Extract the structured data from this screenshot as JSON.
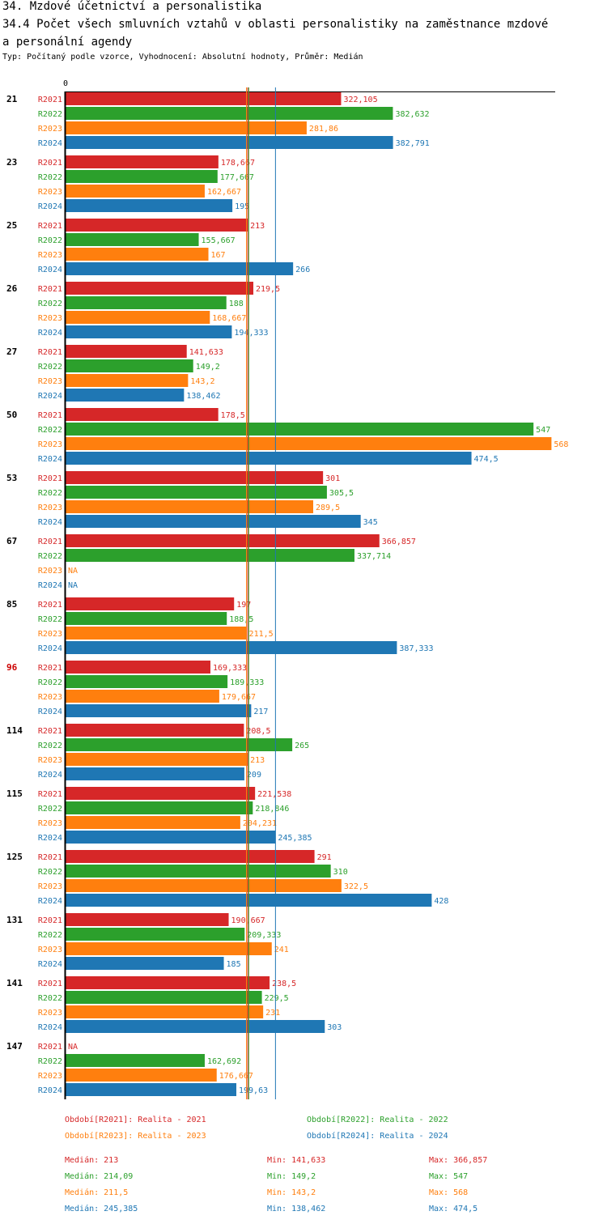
{
  "header": {
    "title_line1": "34. Mzdové účetnictví a personalistika",
    "title_line2": "34.4 Počet všech smluvních vztahů v oblasti personalistiky na zaměstnance mzdové",
    "title_line3": "a personální agendy",
    "subtitle": "Typ: Počítaný podle vzorce, Vyhodnocení: Absolutní hodnoty, Průměr: Medián"
  },
  "colors": {
    "R2021": "#d62728",
    "R2022": "#2ca02c",
    "R2023": "#ff7f0e",
    "R2024": "#1f77b4",
    "highlight": "#cc0000"
  },
  "chart_data": {
    "type": "bar",
    "orientation": "horizontal",
    "title": "34.4 Počet všech smluvních vztahů v oblasti personalistiky na zaměstnance mzdové a personální agendy",
    "axis_zero_label": "0",
    "xlim": [
      0,
      568
    ],
    "series_names": [
      "R2021",
      "R2022",
      "R2023",
      "R2024"
    ],
    "highlight_category": "96",
    "groups": [
      {
        "category": "21",
        "values": [
          322.105,
          382.632,
          281.86,
          382.791
        ],
        "labels": [
          "322,105",
          "382,632",
          "281,86",
          "382,791"
        ]
      },
      {
        "category": "23",
        "values": [
          178.667,
          177.667,
          162.667,
          195
        ],
        "labels": [
          "178,667",
          "177,667",
          "162,667",
          "195"
        ]
      },
      {
        "category": "25",
        "values": [
          213,
          155.667,
          167,
          266
        ],
        "labels": [
          "213",
          "155,667",
          "167",
          "266"
        ]
      },
      {
        "category": "26",
        "values": [
          219.5,
          188,
          168.667,
          194.333
        ],
        "labels": [
          "219,5",
          "188",
          "168,667",
          "194,333"
        ]
      },
      {
        "category": "27",
        "values": [
          141.633,
          149.2,
          143.2,
          138.462
        ],
        "labels": [
          "141,633",
          "149,2",
          "143,2",
          "138,462"
        ]
      },
      {
        "category": "50",
        "values": [
          178.5,
          547,
          568,
          474.5
        ],
        "labels": [
          "178,5",
          "547",
          "568",
          "474,5"
        ]
      },
      {
        "category": "53",
        "values": [
          301,
          305.5,
          289.5,
          345
        ],
        "labels": [
          "301",
          "305,5",
          "289,5",
          "345"
        ]
      },
      {
        "category": "67",
        "values": [
          366.857,
          337.714,
          null,
          null
        ],
        "labels": [
          "366,857",
          "337,714",
          "NA",
          "NA"
        ]
      },
      {
        "category": "85",
        "values": [
          197,
          188.5,
          211.5,
          387.333
        ],
        "labels": [
          "197",
          "188,5",
          "211,5",
          "387,333"
        ]
      },
      {
        "category": "96",
        "values": [
          169.333,
          189.333,
          179.667,
          217
        ],
        "labels": [
          "169,333",
          "189,333",
          "179,667",
          "217"
        ]
      },
      {
        "category": "114",
        "values": [
          208.5,
          265,
          213,
          209
        ],
        "labels": [
          "208,5",
          "265",
          "213",
          "209"
        ]
      },
      {
        "category": "115",
        "values": [
          221.538,
          218.846,
          204.231,
          245.385
        ],
        "labels": [
          "221,538",
          "218,846",
          "204,231",
          "245,385"
        ]
      },
      {
        "category": "125",
        "values": [
          291,
          310,
          322.5,
          428
        ],
        "labels": [
          "291",
          "310",
          "322,5",
          "428"
        ]
      },
      {
        "category": "131",
        "values": [
          190.667,
          209.333,
          241,
          185
        ],
        "labels": [
          "190,667",
          "209,333",
          "241",
          "185"
        ]
      },
      {
        "category": "141",
        "values": [
          238.5,
          229.5,
          231,
          303
        ],
        "labels": [
          "238,5",
          "229,5",
          "231",
          "303"
        ]
      },
      {
        "category": "147",
        "values": [
          null,
          162.692,
          176.667,
          199.63
        ],
        "labels": [
          "NA",
          "162,692",
          "176,667",
          "199,63"
        ]
      }
    ],
    "medians": [
      213,
      214.09,
      211.5,
      245.385
    ]
  },
  "legend": [
    {
      "series": "R2021",
      "text": "Období[R2021]: Realita - 2021"
    },
    {
      "series": "R2022",
      "text": "Období[R2022]: Realita - 2022"
    },
    {
      "series": "R2023",
      "text": "Období[R2023]: Realita - 2023"
    },
    {
      "series": "R2024",
      "text": "Období[R2024]: Realita - 2024"
    }
  ],
  "stats": [
    {
      "series": "R2021",
      "median": "Medián: 213",
      "min": "Min: 141,633",
      "max": "Max: 366,857"
    },
    {
      "series": "R2022",
      "median": "Medián: 214,09",
      "min": "Min: 149,2",
      "max": "Max: 547"
    },
    {
      "series": "R2023",
      "median": "Medián: 211,5",
      "min": "Min: 143,2",
      "max": "Max: 568"
    },
    {
      "series": "R2024",
      "median": "Medián: 245,385",
      "min": "Min: 138,462",
      "max": "Max: 474,5"
    }
  ]
}
